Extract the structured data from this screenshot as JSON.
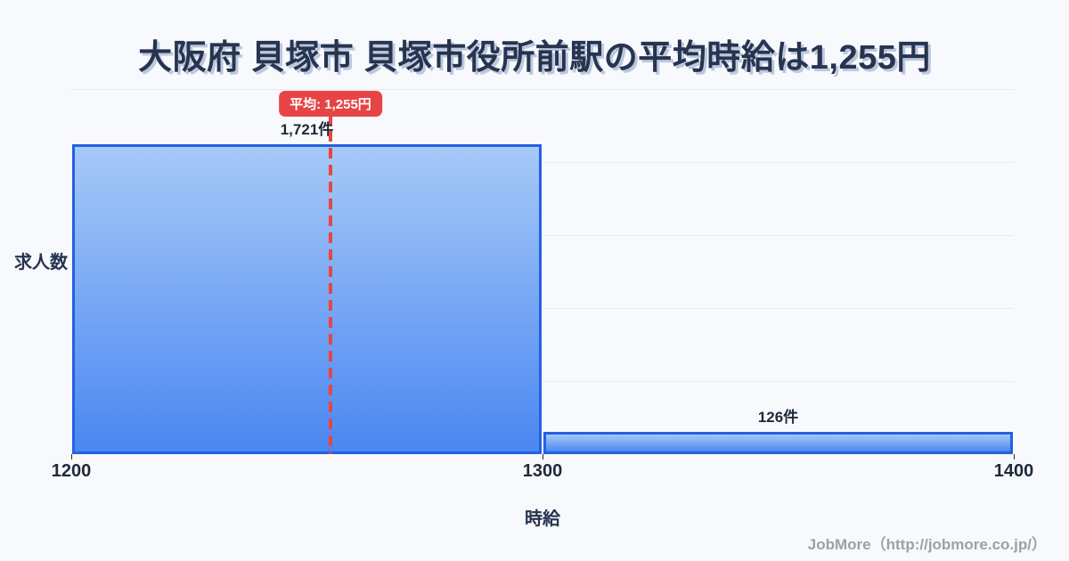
{
  "title": "大阪府 貝塚市 貝塚市役所前駅の平均時給は1,255円",
  "footer": "JobMore（http://jobmore.co.jp/）",
  "colors": {
    "bg": "#f7f9fc",
    "title_navy": "#263450",
    "label_navy": "#1f2a3a",
    "grid": "#e7ebf2",
    "bar_top": "#a6c9f7",
    "bar_bottom": "#4b87f2",
    "bar_border": "#2361e0",
    "avg_red": "#e74545",
    "footer_gray": "#9aa1ab"
  },
  "chart_data": {
    "type": "bar",
    "title": "大阪府 貝塚市 貝塚市役所前駅の平均時給は1,255円",
    "xlabel": "時給",
    "ylabel": "求人数",
    "x_domain": [
      1200,
      1400
    ],
    "y_max": 2028,
    "grid_divisions": 5,
    "x_ticks": [
      {
        "value": 1200,
        "label": "1200"
      },
      {
        "value": 1300,
        "label": "1300"
      },
      {
        "value": 1400,
        "label": "1400"
      }
    ],
    "bars": [
      {
        "x_start": 1200,
        "x_end": 1300,
        "value": 1721,
        "label": "1,721件"
      },
      {
        "x_start": 1300,
        "x_end": 1400,
        "value": 126,
        "label": "126件"
      }
    ],
    "average": {
      "value": 1255,
      "badge_label": "平均: 1,255円"
    }
  }
}
